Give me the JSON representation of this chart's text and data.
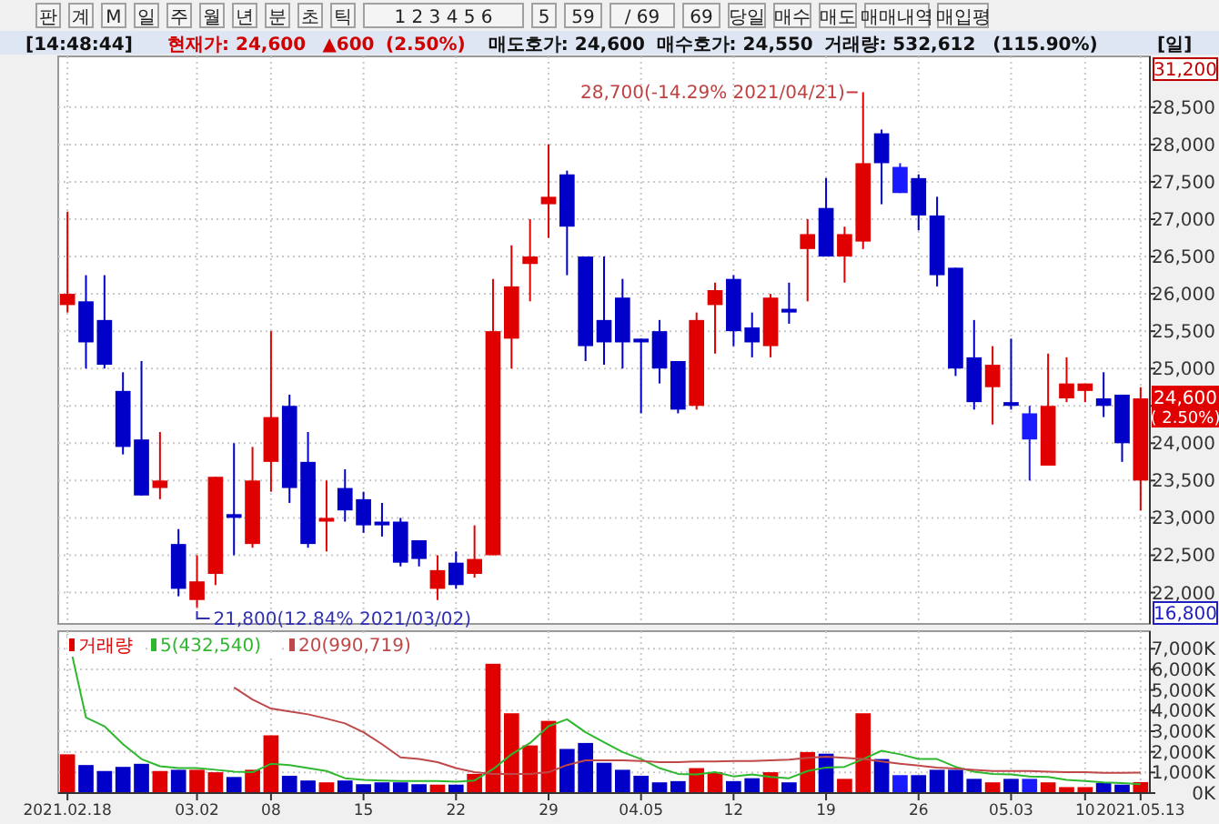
{
  "chart_data": [
    {
      "type": "other",
      "annotations": [
        "판",
        "계",
        "M",
        "일",
        "주",
        "월",
        "년",
        "분",
        "초",
        "틱",
        "1 2 3 4 5 6",
        "5",
        "59",
        "/ 69",
        "69",
        "당일",
        "매수",
        "매도",
        "매매내역",
        "매입평"
      ]
    },
    {
      "type": "other",
      "annotations": [
        "[14:48:44]",
        "현재가: 24,600",
        "▲600",
        "(2.50%)",
        "매도호가: 24,600",
        "매수호가: 24,550",
        "거래량: 532,612",
        "(115.90%)",
        "[일]"
      ]
    },
    {
      "type": "candlestick",
      "categories": [
        "2021.02.18",
        null,
        null,
        null,
        null,
        null,
        null,
        "03.02",
        null,
        null,
        null,
        "08",
        null,
        null,
        null,
        null,
        "15",
        null,
        null,
        null,
        null,
        "22",
        null,
        null,
        null,
        null,
        "29",
        null,
        null,
        null,
        null,
        "04.05",
        null,
        null,
        null,
        null,
        "12",
        null,
        null,
        null,
        null,
        "19",
        null,
        null,
        null,
        null,
        "26",
        null,
        null,
        null,
        null,
        "05.03",
        null,
        null,
        null,
        "10",
        null,
        null,
        "2021.05.13"
      ],
      "ohlc": [
        [
          25850,
          27100,
          25750,
          26000
        ],
        [
          25900,
          26250,
          25000,
          25350
        ],
        [
          25650,
          26250,
          25000,
          25050
        ],
        [
          24700,
          24950,
          23850,
          23950
        ],
        [
          24050,
          25100,
          23300,
          23300
        ],
        [
          23400,
          24150,
          23250,
          23500
        ],
        [
          22650,
          22850,
          21950,
          22050
        ],
        [
          21900,
          22500,
          21800,
          22150
        ],
        [
          22250,
          23550,
          22100,
          23550
        ],
        [
          23050,
          24000,
          22500,
          23000
        ],
        [
          22650,
          23950,
          22600,
          23500
        ],
        [
          23750,
          25500,
          23350,
          24350
        ],
        [
          24500,
          24650,
          23200,
          23400
        ],
        [
          23750,
          24150,
          22600,
          22650
        ],
        [
          22950,
          23500,
          22550,
          23000
        ],
        [
          23400,
          23650,
          22950,
          23100
        ],
        [
          23250,
          23350,
          22800,
          22900
        ],
        [
          22950,
          23200,
          22750,
          22900
        ],
        [
          22950,
          23000,
          22350,
          22400
        ],
        [
          22700,
          22700,
          22350,
          22450
        ],
        [
          22050,
          22500,
          21900,
          22300
        ],
        [
          22400,
          22550,
          22050,
          22100
        ],
        [
          22250,
          22900,
          22200,
          22450
        ],
        [
          22500,
          26200,
          22500,
          25500
        ],
        [
          25400,
          26650,
          25000,
          26100
        ],
        [
          26400,
          27000,
          25900,
          26500
        ],
        [
          27200,
          28000,
          26750,
          27300
        ],
        [
          27600,
          27650,
          26250,
          26900
        ],
        [
          26500,
          26500,
          25100,
          25300
        ],
        [
          25650,
          26500,
          25050,
          25350
        ],
        [
          25950,
          26200,
          25000,
          25350
        ],
        [
          25400,
          25400,
          24400,
          25350
        ],
        [
          25500,
          25650,
          24800,
          25000
        ],
        [
          25100,
          25100,
          24400,
          24450
        ],
        [
          24500,
          25750,
          24450,
          25650
        ],
        [
          25850,
          26150,
          25200,
          26050
        ],
        [
          26200,
          26250,
          25300,
          25500
        ],
        [
          25550,
          25750,
          25150,
          25350
        ],
        [
          25300,
          26000,
          25150,
          25950
        ],
        [
          25800,
          26150,
          25600,
          25750
        ],
        [
          26600,
          27000,
          25900,
          26800
        ],
        [
          27150,
          27550,
          26500,
          26500
        ],
        [
          26500,
          26900,
          26150,
          26800
        ],
        [
          26700,
          28700,
          26600,
          27750
        ],
        [
          28150,
          28200,
          27200,
          27750
        ],
        [
          27700,
          27750,
          27350,
          27350
        ],
        [
          27550,
          27600,
          26850,
          27050
        ],
        [
          27050,
          27300,
          26100,
          26250
        ],
        [
          26350,
          26350,
          24900,
          25000
        ],
        [
          25150,
          25650,
          24450,
          24550
        ],
        [
          24750,
          25300,
          24250,
          25050
        ],
        [
          24550,
          25400,
          24450,
          24500
        ],
        [
          24400,
          24500,
          23500,
          24050
        ],
        [
          23700,
          25200,
          23700,
          24500
        ],
        [
          24600,
          25150,
          24550,
          24800
        ],
        [
          24700,
          24800,
          24550,
          24800
        ],
        [
          24600,
          24950,
          24350,
          24500
        ],
        [
          24650,
          24650,
          23750,
          24000
        ],
        [
          23500,
          24750,
          23100,
          24600
        ]
      ],
      "colors": [
        "#e00000",
        "#0000c8",
        "#0000c8",
        "#0000c8",
        "#0000c8",
        "#e00000",
        "#0000c8",
        "#e00000",
        "#e00000",
        "#0000c8",
        "#e00000",
        "#e00000",
        "#0000c8",
        "#0000c8",
        "#e00000",
        "#0000c8",
        "#0000c8",
        "#0000c8",
        "#0000c8",
        "#0000c8",
        "#e00000",
        "#0000c8",
        "#e00000",
        "#e00000",
        "#e00000",
        "#e00000",
        "#e00000",
        "#0000c8",
        "#0000c8",
        "#0000c8",
        "#0000c8",
        "#0000c8",
        "#0000c8",
        "#0000c8",
        "#e00000",
        "#e00000",
        "#0000c8",
        "#0000c8",
        "#e00000",
        "#0000c8",
        "#e00000",
        "#0000c8",
        "#e00000",
        "#e00000",
        "#0000c8",
        "#1a1aff",
        "#0000c8",
        "#0000c8",
        "#0000c8",
        "#0000c8",
        "#e00000",
        "#0000c8",
        "#1a1aff",
        "#e00000",
        "#e00000",
        "#e00000",
        "#0000c8",
        "#0000c8",
        "#e00000"
      ],
      "ylim": [
        21580,
        29180
      ],
      "yticks": [
        {
          "value": 22000,
          "label": "22,000"
        },
        {
          "value": 22500,
          "label": "22,500"
        },
        {
          "value": 23000,
          "label": "23,000"
        },
        {
          "value": 23500,
          "label": "23,500"
        },
        {
          "value": 24000,
          "label": "24,000"
        },
        {
          "value": 24500,
          "label": null
        },
        {
          "value": 25000,
          "label": "25,000"
        },
        {
          "value": 25500,
          "label": "25,500"
        },
        {
          "value": 26000,
          "label": "26,000"
        },
        {
          "value": 26500,
          "label": "26,500"
        },
        {
          "value": 27000,
          "label": "27,000"
        },
        {
          "value": 27500,
          "label": "27,500"
        },
        {
          "value": 28000,
          "label": "28,000"
        },
        {
          "value": 28500,
          "label": "28,500"
        }
      ],
      "grid": true,
      "tick_labels": "y",
      "annotations": [
        "31,200",
        "16,800",
        "24,600 ( 2.50%)",
        "28,700(-14.29% 2021/04/21)",
        "21,800(12.84% 2021/03/02)"
      ]
    },
    {
      "type": "bar",
      "categories": [
        "2021.02.18",
        null,
        null,
        null,
        null,
        null,
        null,
        "03.02",
        null,
        null,
        null,
        "08",
        null,
        null,
        null,
        null,
        "15",
        null,
        null,
        null,
        null,
        "22",
        null,
        null,
        null,
        null,
        "29",
        null,
        null,
        null,
        null,
        "04.05",
        null,
        null,
        null,
        null,
        "12",
        null,
        null,
        null,
        null,
        "19",
        null,
        null,
        null,
        null,
        "26",
        null,
        null,
        null,
        null,
        "05.03",
        null,
        null,
        null,
        "10",
        null,
        null,
        "2021.05.13"
      ],
      "series": [
        {
          "name": "거래량",
          "type": "bar",
          "values": [
            1880,
            1360,
            1070,
            1270,
            1420,
            1070,
            1130,
            1130,
            1010,
            780,
            1130,
            2800,
            840,
            610,
            520,
            610,
            430,
            520,
            520,
            430,
            410,
            410,
            930,
            6270,
            3870,
            2310,
            3500,
            2140,
            2430,
            1470,
            1130,
            840,
            520,
            580,
            1210,
            1010,
            580,
            720,
            1010,
            520,
            1990,
            1910,
            690,
            3870,
            1650,
            870,
            870,
            1130,
            1130,
            690,
            520,
            690,
            690,
            520,
            290,
            290,
            490,
            410,
            533
          ],
          "colors": [
            "#e00000",
            "#0000c8",
            "#0000c8",
            "#0000c8",
            "#0000c8",
            "#e00000",
            "#0000c8",
            "#e00000",
            "#e00000",
            "#0000c8",
            "#e00000",
            "#e00000",
            "#0000c8",
            "#0000c8",
            "#e00000",
            "#0000c8",
            "#0000c8",
            "#0000c8",
            "#0000c8",
            "#0000c8",
            "#e00000",
            "#0000c8",
            "#e00000",
            "#e00000",
            "#e00000",
            "#e00000",
            "#e00000",
            "#0000c8",
            "#0000c8",
            "#0000c8",
            "#0000c8",
            "#0000c8",
            "#0000c8",
            "#0000c8",
            "#e00000",
            "#e00000",
            "#0000c8",
            "#0000c8",
            "#e00000",
            "#0000c8",
            "#e00000",
            "#0000c8",
            "#e00000",
            "#e00000",
            "#0000c8",
            "#1a1aff",
            "#0000c8",
            "#0000c8",
            "#0000c8",
            "#0000c8",
            "#e00000",
            "#0000c8",
            "#1a1aff",
            "#e00000",
            "#e00000",
            "#e00000",
            "#0000c8",
            "#0000c8",
            "#e00000"
          ]
        },
        {
          "name": "5(432,540)",
          "type": "line",
          "color": "#2eb82e",
          "values": [
            7700,
            3670,
            3240,
            2370,
            1650,
            1300,
            1210,
            1210,
            1130,
            1040,
            1010,
            1420,
            1360,
            1210,
            1070,
            720,
            640,
            610,
            580,
            580,
            580,
            550,
            610,
            1160,
            1880,
            2430,
            3240,
            3580,
            2950,
            2460,
            1990,
            1650,
            1210,
            930,
            900,
            1010,
            810,
            900,
            780,
            720,
            1070,
            1240,
            1270,
            1650,
            2050,
            1880,
            1650,
            1650,
            1270,
            1040,
            930,
            900,
            810,
            780,
            640,
            580,
            520,
            490,
            433
          ]
        },
        {
          "name": "20(990,719)",
          "type": "line",
          "color": "#c04848",
          "values": [
            null,
            null,
            null,
            null,
            null,
            null,
            null,
            null,
            null,
            5120,
            4540,
            4100,
            3960,
            3820,
            3610,
            3380,
            2950,
            2370,
            1730,
            1650,
            1500,
            1210,
            1010,
            930,
            930,
            930,
            1010,
            1360,
            1590,
            1590,
            1590,
            1560,
            1500,
            1500,
            1530,
            1530,
            1560,
            1560,
            1590,
            1620,
            1710,
            1760,
            1710,
            1650,
            1530,
            1420,
            1330,
            1240,
            1190,
            1130,
            1070,
            1070,
            1070,
            1040,
            1010,
            1010,
            980,
            980,
            991
          ]
        }
      ],
      "ylim": [
        0,
        7850
      ],
      "yticks": [
        {
          "value": 0,
          "label": "0K"
        },
        {
          "value": 1000,
          "label": "1,000K"
        },
        {
          "value": 2000,
          "label": "2,000K"
        },
        {
          "value": 3000,
          "label": "3,000K"
        },
        {
          "value": 4000,
          "label": "4,000K"
        },
        {
          "value": 5000,
          "label": "5,000K"
        },
        {
          "value": 6000,
          "label": "6,000K"
        },
        {
          "value": 7000,
          "label": "7,000K"
        }
      ],
      "grid": true,
      "legend": "top left"
    }
  ]
}
